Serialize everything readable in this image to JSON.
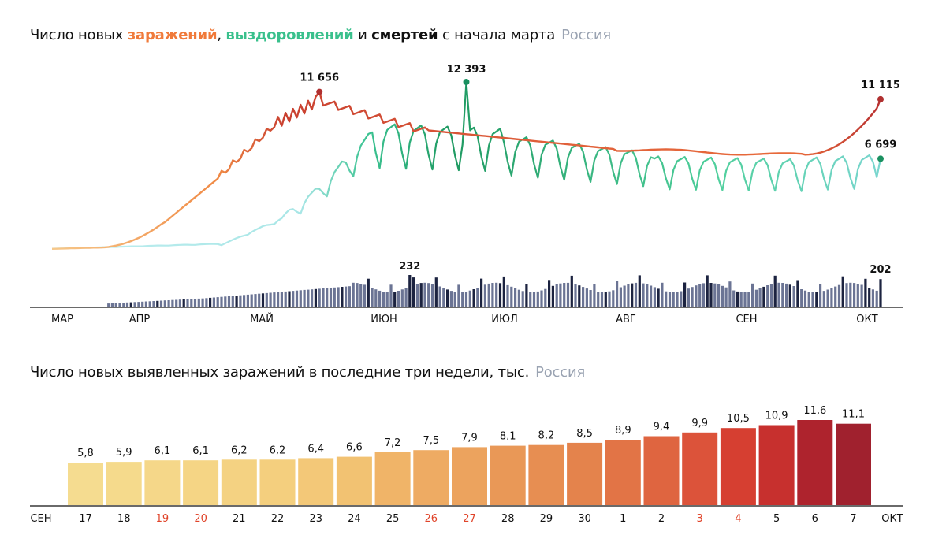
{
  "top_chart": {
    "title_parts": {
      "prefix": "Число новых ",
      "infections": "заражений",
      "comma": ", ",
      "recoveries": "выздоровлений",
      "and": " и ",
      "deaths": "смертей",
      "suffix": " с начала марта",
      "region": "Россия"
    },
    "months": [
      "МАР",
      "АПР",
      "МАЙ",
      "ИЮН",
      "ИЮЛ",
      "АВГ",
      "СЕН",
      "ОКТ"
    ],
    "annotations": {
      "infections_may_peak": "11 656",
      "recoveries_peak": "12 393",
      "infections_last": "11 115",
      "recoveries_last": "6 699",
      "deaths_peak": "232",
      "deaths_last": "202"
    }
  },
  "bottom_chart": {
    "title": "Число новых выявленных заражений в последние три недели, тыс.",
    "region": "Россия",
    "month_start": "СЕН",
    "month_end": "ОКТ"
  },
  "colors": {
    "infections": "#f07a3a",
    "recoveries": "#39c08c",
    "deaths": "#2f3a5a",
    "annotation_infections": "#b03030",
    "annotation_recoveries": "#1a9060",
    "weekend_red": "#e0442a"
  },
  "chart_data": [
    {
      "type": "line",
      "x_start": "2020-03-01",
      "x_end": "2020-10-07",
      "series": [
        {
          "name": "заражений",
          "peaks": [
            {
              "x": "2020-05-11",
              "y": 11656
            },
            {
              "x": "2020-10-07",
              "y": 11115
            }
          ]
        },
        {
          "name": "выздоровлений",
          "peaks": [
            {
              "x": "2020-06-19",
              "y": 12393
            },
            {
              "x": "2020-10-07",
              "y": 6699
            }
          ]
        },
        {
          "name": "смертей",
          "peaks": [
            {
              "x": "2020-06-06",
              "y": 232
            },
            {
              "x": "2020-10-07",
              "y": 202
            }
          ]
        }
      ]
    },
    {
      "type": "bar",
      "categories": [
        "17",
        "18",
        "19",
        "20",
        "21",
        "22",
        "23",
        "24",
        "25",
        "26",
        "27",
        "28",
        "29",
        "30",
        "1",
        "2",
        "3",
        "4",
        "5",
        "6",
        "7"
      ],
      "value_labels": [
        "5,8",
        "5,9",
        "6,1",
        "6,1",
        "6,2",
        "6,2",
        "6,4",
        "6,6",
        "7,2",
        "7,5",
        "7,9",
        "8,1",
        "8,2",
        "8,5",
        "8,9",
        "9,4",
        "9,9",
        "10,5",
        "10,9",
        "11,6",
        "11,1"
      ],
      "values": [
        5.8,
        5.9,
        6.1,
        6.1,
        6.2,
        6.2,
        6.4,
        6.6,
        7.2,
        7.5,
        7.9,
        8.1,
        8.2,
        8.5,
        8.9,
        9.4,
        9.9,
        10.5,
        10.9,
        11.6,
        11.1
      ],
      "weekend_indices": [
        2,
        3,
        9,
        10,
        16,
        17
      ],
      "colors": [
        "#f5dc90",
        "#f5da8c",
        "#f5d789",
        "#f5d585",
        "#f4d282",
        "#f4cf7e",
        "#f3c878",
        "#f2c272",
        "#f0b468",
        "#eeab63",
        "#eca35e",
        "#e99857",
        "#e78e52",
        "#e4834c",
        "#e27446",
        "#df6540",
        "#dc533a",
        "#d63f31",
        "#c7302e",
        "#ae232d",
        "#a0212e"
      ],
      "ylim": [
        0,
        12.5
      ]
    }
  ]
}
